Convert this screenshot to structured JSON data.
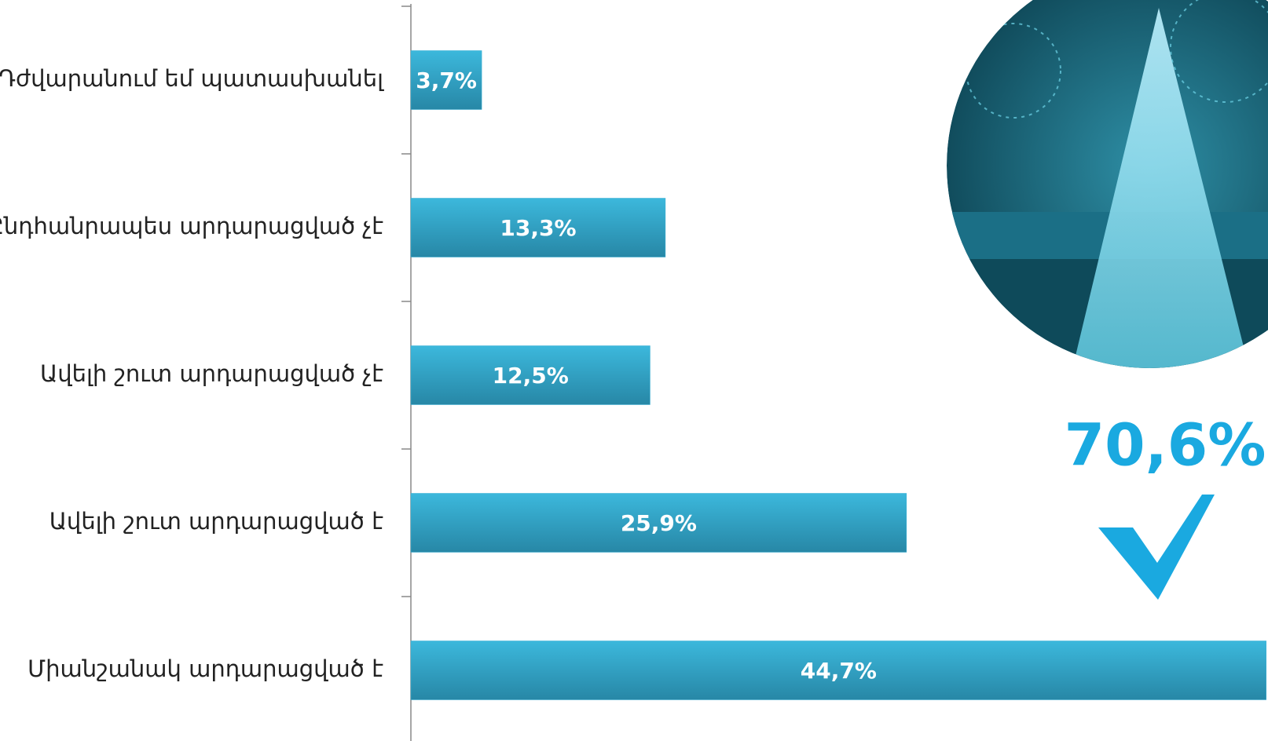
{
  "chart_data": {
    "type": "bar",
    "orientation": "horizontal",
    "categories": [
      "Դժվարանում եմ պատասխանել",
      "Ընդհանրապես արդարացված չէ",
      "Ավելի շուտ արդարացված չէ",
      "Ավելի շուտ արդարացված է",
      "Միանշանակ արդարացված է"
    ],
    "values": [
      3.7,
      13.3,
      12.5,
      25.9,
      44.7
    ],
    "value_labels": [
      "3,7%",
      "13,3%",
      "12,5%",
      "25,9%",
      "44,7%"
    ],
    "color": "#34aed3",
    "xlim": [
      0,
      45
    ],
    "annotation": "70,6%"
  }
}
